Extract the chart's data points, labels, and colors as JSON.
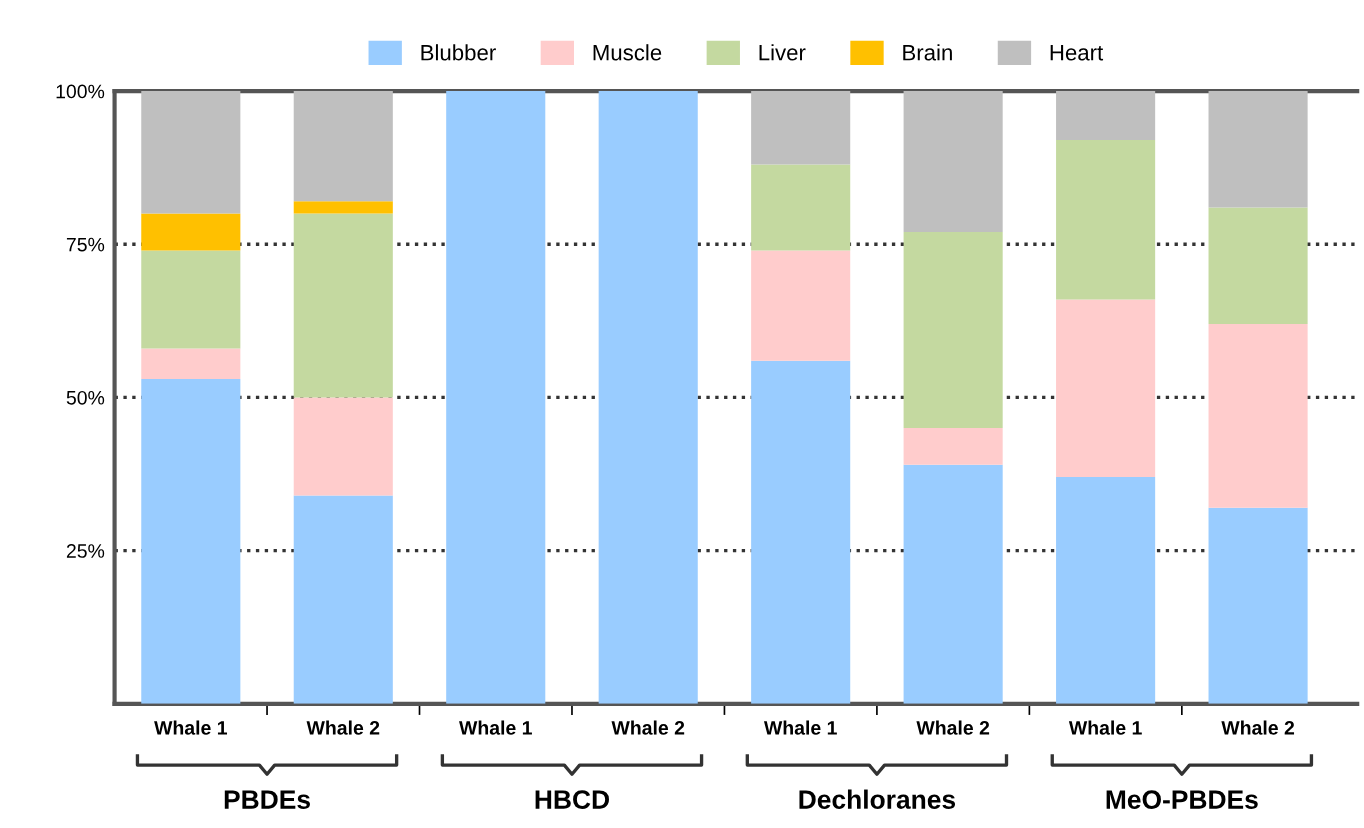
{
  "chart_data": {
    "type": "bar",
    "stacked": true,
    "categories": [
      "Whale 1",
      "Whale 2",
      "Whale 1",
      "Whale 2",
      "Whale 1",
      "Whale 2",
      "Whale 1",
      "Whale 2"
    ],
    "series": [
      {
        "name": "Blubber",
        "color": "#99ccff",
        "values": [
          53,
          34,
          100,
          100,
          56,
          39,
          37,
          32
        ]
      },
      {
        "name": "Muscle",
        "color": "#ffcccc",
        "values": [
          5,
          16,
          0,
          0,
          18,
          6,
          29,
          30
        ]
      },
      {
        "name": "Liver",
        "color": "#c4d9a0",
        "values": [
          16,
          30,
          0,
          0,
          14,
          32,
          26,
          19
        ]
      },
      {
        "name": "Brain",
        "color": "#ffc000",
        "values": [
          6,
          2,
          0,
          0,
          0,
          0,
          0,
          0
        ]
      },
      {
        "name": "Heart",
        "color": "#bfbfbf",
        "values": [
          20,
          18,
          0,
          0,
          12,
          23,
          8,
          19
        ]
      }
    ],
    "annotations": [
      "PBDEs",
      "HBCD",
      "Dechloranes",
      "MeO-PBDEs"
    ],
    "ylim": [
      0,
      100
    ],
    "yticks": [
      {
        "value": 25,
        "label": "25%"
      },
      {
        "value": 50,
        "label": "50%"
      },
      {
        "value": 75,
        "label": "75%"
      },
      {
        "value": 100,
        "label": "100%"
      }
    ],
    "grid": "y",
    "line_style": "dotted",
    "legend": "top"
  }
}
